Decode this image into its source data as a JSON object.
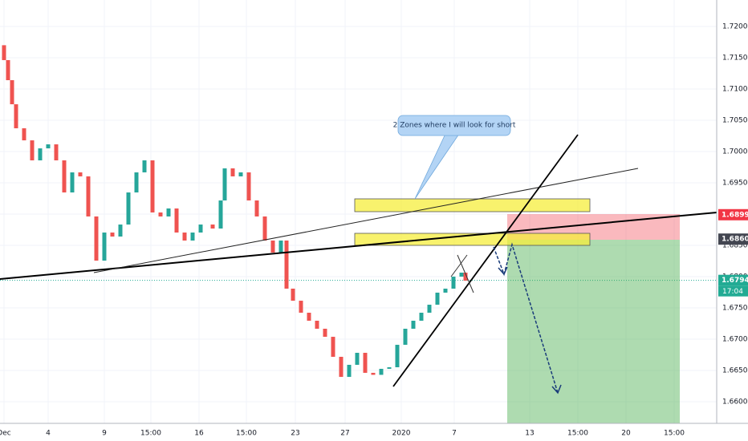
{
  "chart_data": {
    "type": "candlestick",
    "x": [
      5,
      10,
      15,
      20,
      30,
      40,
      50,
      60,
      70,
      80,
      90,
      100,
      110,
      120,
      130,
      140,
      150,
      160,
      170,
      180,
      190,
      200,
      210,
      220,
      230,
      240,
      250,
      265,
      275,
      280,
      290,
      300,
      310,
      320,
      330,
      340,
      350,
      357,
      365,
      375,
      385,
      395,
      405,
      415,
      425,
      435,
      445,
      455,
      465,
      475,
      485,
      495,
      505,
      515,
      525,
      535,
      545,
      555,
      565,
      575,
      580
    ],
    "open": [
      1.717,
      1.71462,
      1.71141,
      1.70756,
      1.70372,
      1.70179,
      1.69859,
      1.70051,
      1.70115,
      1.69859,
      1.69346,
      1.69667,
      1.69603,
      1.68962,
      1.68256,
      1.68705,
      1.68641,
      1.68833,
      1.69346,
      1.69667,
      1.69859,
      1.69026,
      1.68962,
      1.6909,
      1.68705,
      1.68577,
      1.68705,
      1.68833,
      1.68769,
      1.69218,
      1.69731,
      1.69603,
      1.69667,
      1.69218,
      1.68962,
      1.68577,
      1.68385,
      1.68577,
      1.67808,
      1.67615,
      1.67423,
      1.67295,
      1.67167,
      1.67038,
      1.66718,
      1.66397,
      1.6659,
      1.66782,
      1.66462,
      1.6643,
      1.66526,
      1.66551,
      1.6691,
      1.67167,
      1.67295,
      1.67423,
      1.67551,
      1.67744,
      1.67808,
      1.68,
      1.68064
    ],
    "close": [
      1.71462,
      1.71141,
      1.70756,
      1.70372,
      1.70179,
      1.69859,
      1.70051,
      1.70115,
      1.69859,
      1.69346,
      1.69667,
      1.69603,
      1.68962,
      1.68256,
      1.68705,
      1.68641,
      1.68833,
      1.69346,
      1.69667,
      1.69859,
      1.69026,
      1.68962,
      1.6909,
      1.68705,
      1.68577,
      1.68705,
      1.68833,
      1.68769,
      1.69218,
      1.69731,
      1.69603,
      1.69667,
      1.69218,
      1.68962,
      1.68577,
      1.68385,
      1.68577,
      1.67808,
      1.67615,
      1.67423,
      1.67295,
      1.67167,
      1.67038,
      1.66718,
      1.66397,
      1.6659,
      1.66782,
      1.66462,
      1.6643,
      1.66526,
      1.66551,
      1.6691,
      1.67167,
      1.67295,
      1.67423,
      1.67551,
      1.67744,
      1.67808,
      1.68,
      1.68064,
      1.67936
    ],
    "up_color": "#26a69a",
    "down_color": "#ef5350",
    "xlim": [
      0,
      893
    ],
    "xticks": [
      {
        "value": 5,
        "label": "Dec"
      },
      {
        "value": 60,
        "label": "4"
      },
      {
        "value": 130,
        "label": "9"
      },
      {
        "value": 188,
        "label": "15:00"
      },
      {
        "value": 248,
        "label": "16"
      },
      {
        "value": 307,
        "label": "15:00"
      },
      {
        "value": 368,
        "label": "23"
      },
      {
        "value": 430,
        "label": "27"
      },
      {
        "value": 500,
        "label": "2020"
      },
      {
        "value": 566,
        "label": "7"
      },
      {
        "value": 660,
        "label": "13"
      },
      {
        "value": 720,
        "label": "15:00"
      },
      {
        "value": 780,
        "label": "20"
      },
      {
        "value": 840,
        "label": "15:00"
      }
    ],
    "ylim": [
      1.65654,
      1.72423
    ],
    "yticks": [
      {
        "value": 1.72,
        "label": "1.72000"
      },
      {
        "value": 1.715,
        "label": "1.71500"
      },
      {
        "value": 1.71,
        "label": "1.71000"
      },
      {
        "value": 1.705,
        "label": "1.70500"
      },
      {
        "value": 1.7,
        "label": "1.70000"
      },
      {
        "value": 1.695,
        "label": "1.69500"
      },
      {
        "value": 1.69,
        "label": "1.69000"
      },
      {
        "value": 1.685,
        "label": "1.68500"
      },
      {
        "value": 1.68,
        "label": "1.68000"
      },
      {
        "value": 1.675,
        "label": "1.67500"
      },
      {
        "value": 1.67,
        "label": "1.67000"
      },
      {
        "value": 1.665,
        "label": "1.66500"
      },
      {
        "value": 1.66,
        "label": "1.66000"
      }
    ],
    "grid": true,
    "annotation": "2 Zones where I will look for short",
    "price_labels": [
      {
        "value": 1.6899,
        "label": "1.68990",
        "color": "#f23645"
      },
      {
        "value": 1.686,
        "label": "1.68600",
        "color": "#434651"
      },
      {
        "value": 1.6794,
        "label": "1.67940",
        "color": "#22ab94"
      }
    ],
    "countdown": "17:04"
  }
}
